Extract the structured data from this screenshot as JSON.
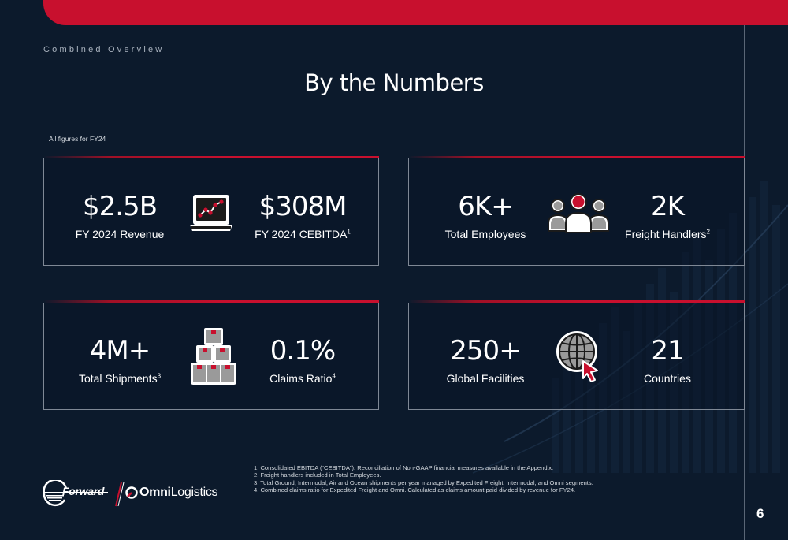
{
  "header": {
    "section_label": "Combined Overview",
    "title": "By the Numbers",
    "note": "All figures for FY24"
  },
  "cards": {
    "financials": {
      "left_value": "$2.5B",
      "left_label": "FY 2024 Revenue",
      "right_value": "$308M",
      "right_label": "FY 2024 CEBITDA",
      "right_sup": "1",
      "icon": "laptop-chart-icon"
    },
    "people": {
      "left_value": "6K+",
      "left_label": "Total Employees",
      "right_value": "2K",
      "right_label": "Freight Handlers",
      "right_sup": "2",
      "icon": "people-group-icon"
    },
    "shipments": {
      "left_value": "4M+",
      "left_label": "Total Shipments",
      "left_sup": "3",
      "right_value": "0.1%",
      "right_label": "Claims Ratio",
      "right_sup": "4",
      "icon": "stacked-boxes-icon"
    },
    "network": {
      "left_value": "250+",
      "left_label": "Global Facilities",
      "right_value": "21",
      "right_label": "Countries",
      "icon": "globe-cursor-icon"
    }
  },
  "footnotes": [
    "1.  Consolidated EBITDA (“CEBITDA”). Reconciliation of Non-GAAP financial measures available in the Appendix.",
    "2.  Freight handlers included in Total Employees.",
    "3.  Total Ground, Intermodal, Air and Ocean shipments per year managed by Expedited Freight, Intermodal, and Omni segments.",
    "4.  Combined claims ratio for Expedited Freight and Omni. Calculated as claims amount paid divided by revenue for FY24."
  ],
  "logos": {
    "forward": "Forward",
    "omni_bold": "Omni",
    "omni_light": "Logistics",
    "omni_mark": "®"
  },
  "page_number": "6",
  "colors": {
    "brand_red": "#c8102e",
    "background": "#0c1a2c",
    "card_border": "#7f8895"
  }
}
